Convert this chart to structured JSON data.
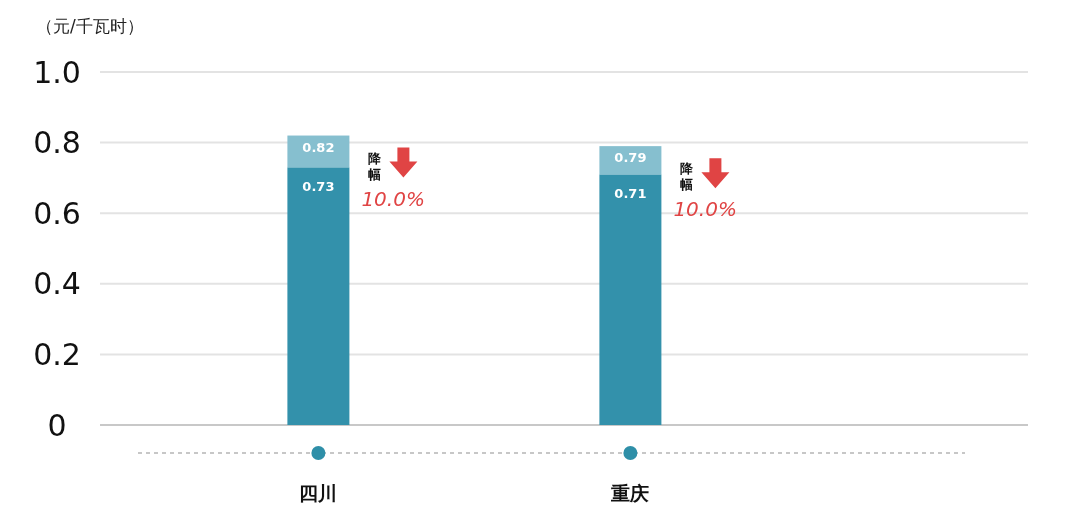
{
  "chart_data": {
    "type": "bar",
    "ylabel": "（元/千瓦时）",
    "categories": [
      "四川",
      "重庆"
    ],
    "series": [
      {
        "color": "#3391ab",
        "values": [
          0.73,
          0.71
        ],
        "value_labels": [
          "0.73",
          "0.71"
        ]
      },
      {
        "color": "#86bfcf",
        "values": [
          0.09,
          0.08
        ]
      }
    ],
    "stacked": true,
    "totals": [
      "0.82",
      "0.79"
    ],
    "ylim": [
      0,
      1.0
    ],
    "yticks": [
      0,
      0.2,
      0.4,
      0.6,
      0.8,
      {
        "value": 1.0,
        "label": "1.0"
      }
    ],
    "grid": "y",
    "annotations": [
      "降幅",
      "10.0%",
      "降幅",
      "10.0%"
    ]
  }
}
